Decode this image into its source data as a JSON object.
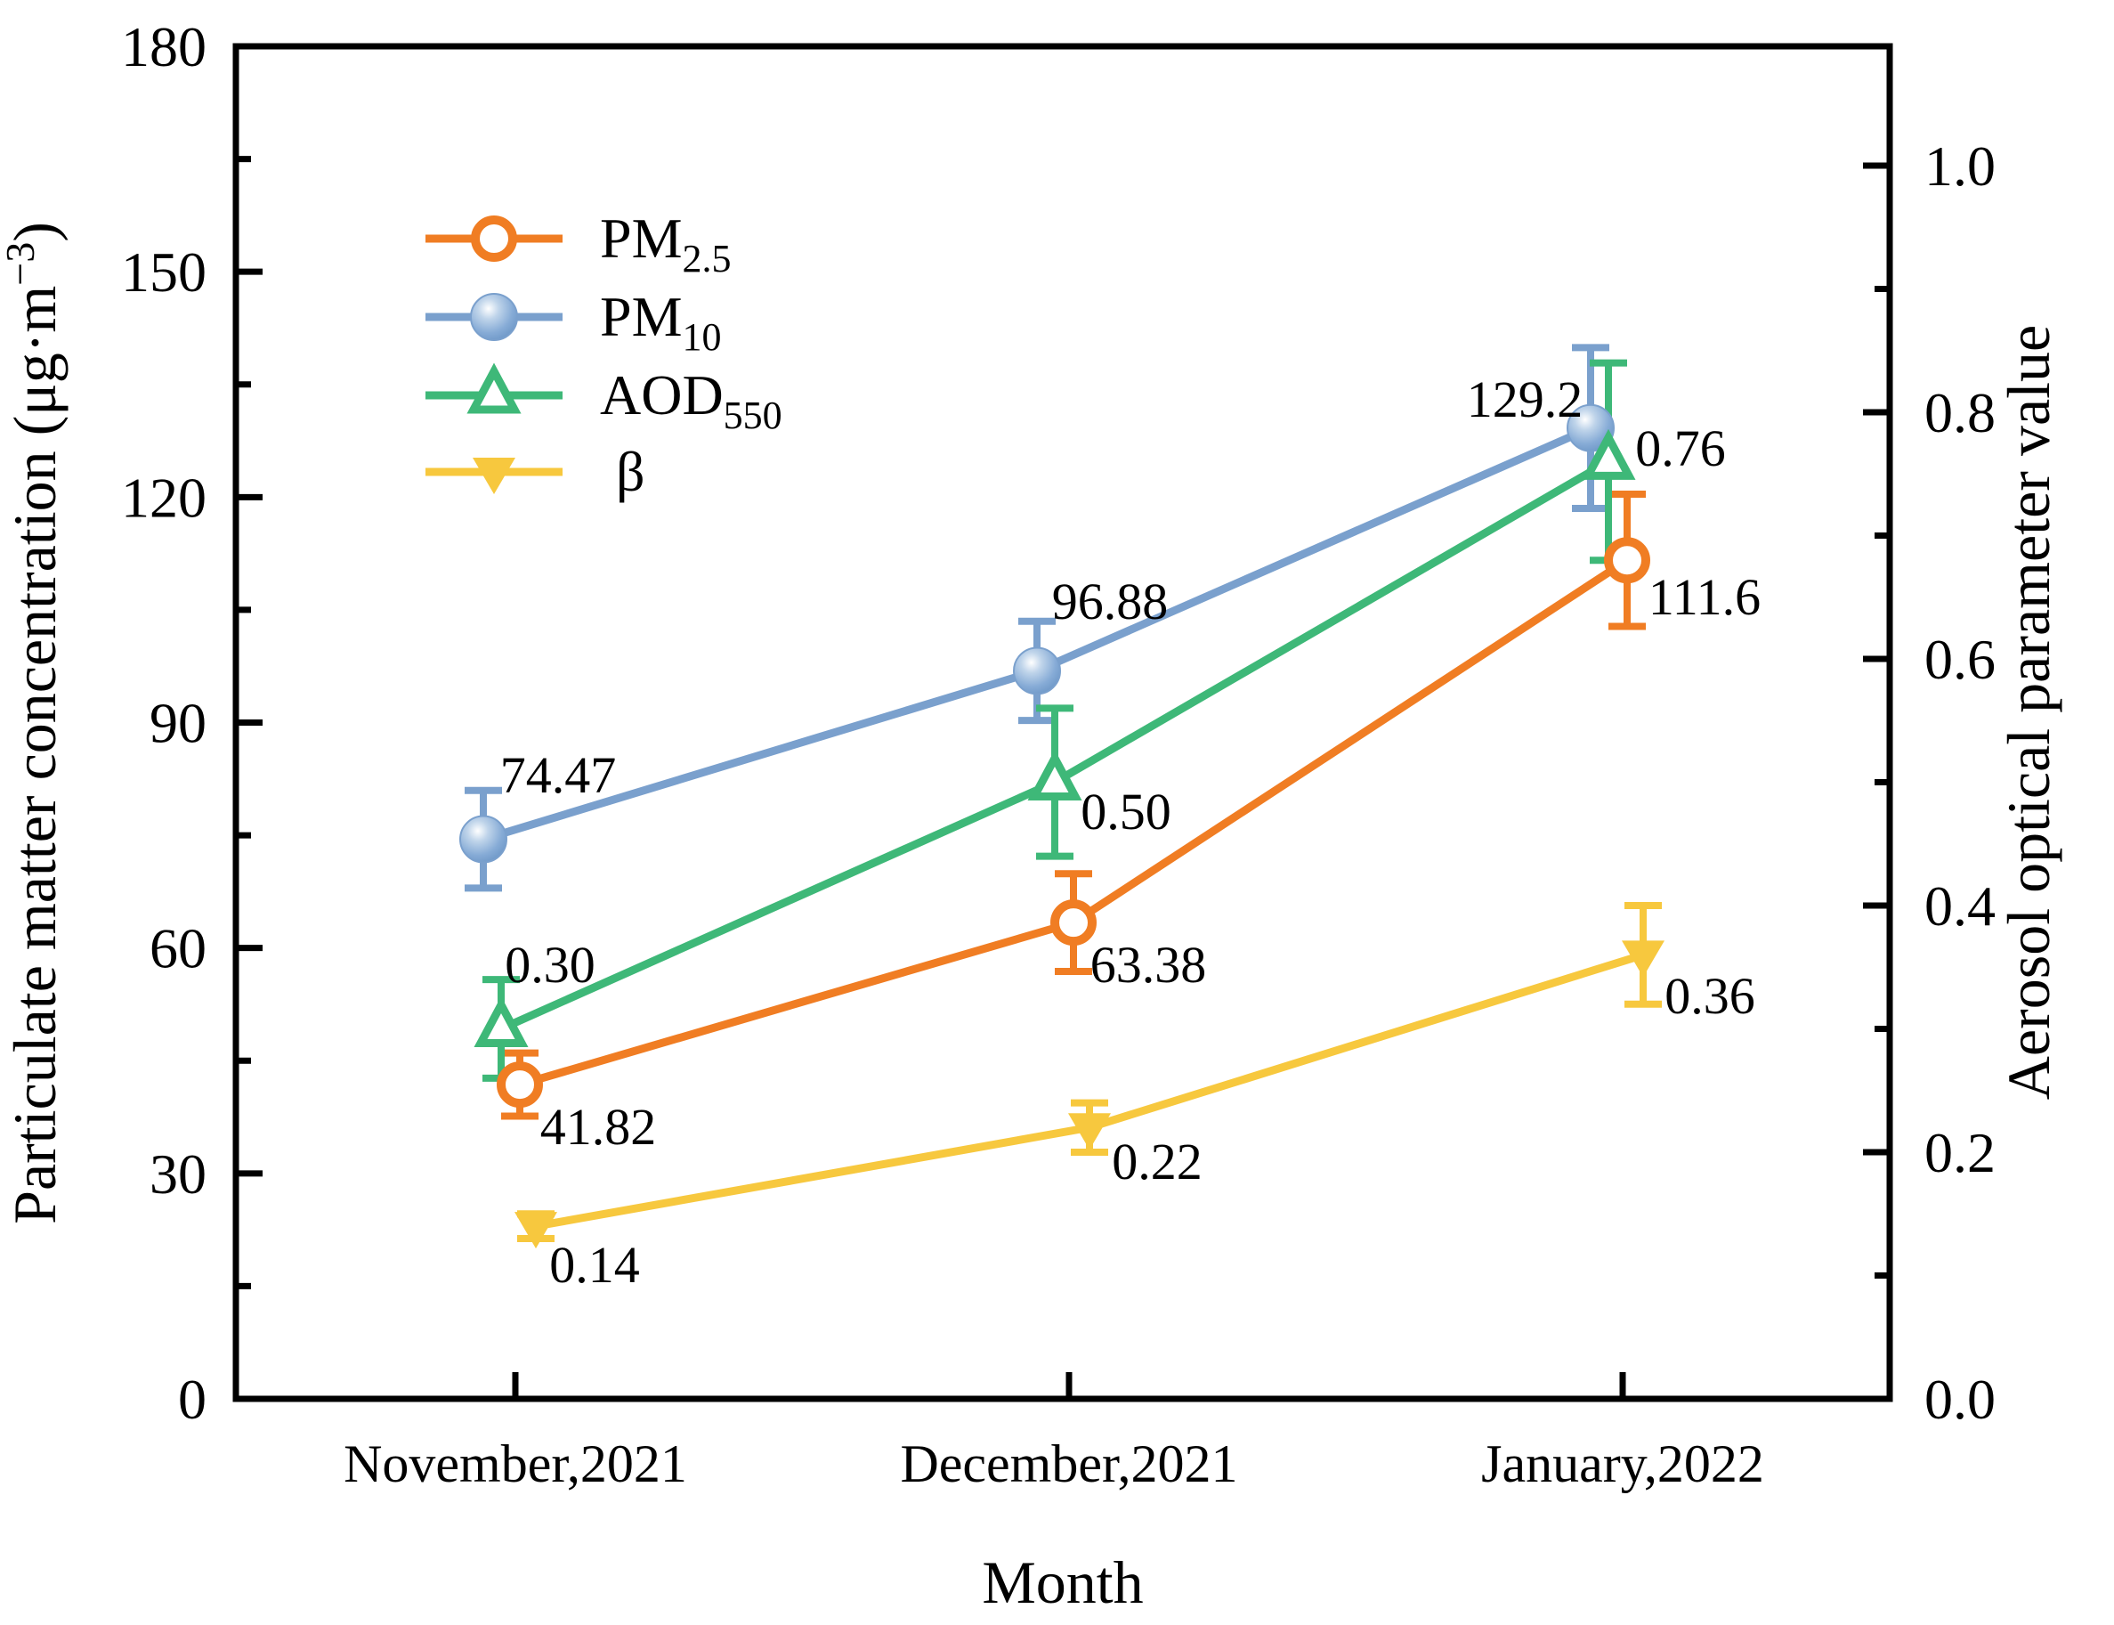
{
  "chart_data": {
    "type": "line",
    "categories": [
      "November,2021",
      "December,2021",
      "January,2022"
    ],
    "x_label": "Month",
    "left_axis": {
      "label_parts": {
        "pre": "Particulate matter concentration (μg·m",
        "sup": "−3",
        "post": ")"
      },
      "min": 0,
      "max": 180,
      "major_step": 30,
      "minor_step": 15,
      "tick_labels": [
        "0",
        "30",
        "60",
        "90",
        "120",
        "150",
        "180"
      ]
    },
    "right_axis": {
      "label": "Aerosol optical parameter value",
      "min": 0.0,
      "max": 1.0,
      "major_step": 0.2,
      "minor_step": 0.1,
      "tick_labels": [
        "0.0",
        "0.2",
        "0.4",
        "0.6",
        "0.8",
        "1.0"
      ]
    },
    "grid": "off",
    "legend_position": "upper-left-inside",
    "series": [
      {
        "id": "pm25",
        "name_main": "PM",
        "name_sub": "2.5",
        "axis": "left",
        "color": "#F07D23",
        "marker": "open-circle",
        "values": [
          41.82,
          63.38,
          111.6
        ],
        "errors": [
          4.2,
          6.5,
          8.8
        ],
        "point_labels": [
          "41.82",
          "63.38",
          "111.6"
        ]
      },
      {
        "id": "pm10",
        "name_main": "PM",
        "name_sub": "10",
        "axis": "left",
        "color": "#7AA0CD",
        "marker": "ball-circle",
        "values": [
          74.47,
          96.88,
          129.2
        ],
        "errors": [
          6.5,
          6.6,
          10.7
        ],
        "point_labels": [
          "74.47",
          "96.88",
          "129.2"
        ]
      },
      {
        "id": "aod550",
        "name_main": "AOD",
        "name_sub": "550",
        "axis": "right",
        "color": "#3EB878",
        "marker": "open-triangle-up",
        "values": [
          0.3,
          0.5,
          0.76
        ],
        "errors": [
          0.04,
          0.06,
          0.08
        ],
        "point_labels": [
          "0.30",
          "0.50",
          "0.76"
        ]
      },
      {
        "id": "beta",
        "name_main": "β",
        "name_sub": "",
        "axis": "right",
        "color": "#F7C83E",
        "marker": "filled-triangle-down",
        "values": [
          0.14,
          0.22,
          0.36
        ],
        "errors": [
          0.01,
          0.02,
          0.04
        ],
        "point_labels": [
          "0.14",
          "0.22",
          "0.36"
        ]
      }
    ]
  }
}
